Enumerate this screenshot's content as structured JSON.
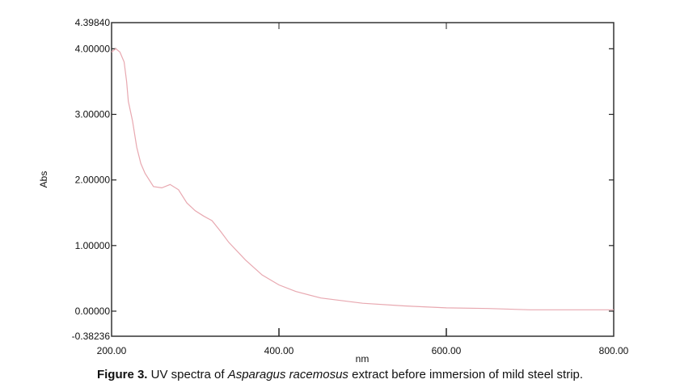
{
  "chart_data": {
    "type": "line",
    "title": "",
    "xlabel": "nm",
    "ylabel": "Abs",
    "xlim": [
      200,
      800
    ],
    "ylim": [
      -0.38236,
      4.3984
    ],
    "x_ticks": [
      "200.00",
      "400.00",
      "600.00",
      "800.00"
    ],
    "y_ticks": [
      "4.39840",
      "4.00000",
      "3.00000",
      "2.00000",
      "1.00000",
      "0.00000",
      "-0.38236"
    ],
    "grid": false,
    "series_color": "#e8a8b0",
    "x": [
      200,
      205,
      210,
      215,
      218,
      220,
      225,
      230,
      235,
      240,
      250,
      260,
      270,
      280,
      290,
      300,
      310,
      320,
      330,
      340,
      360,
      380,
      400,
      420,
      450,
      500,
      550,
      600,
      650,
      700,
      750,
      800
    ],
    "y": [
      3.95,
      4.0,
      3.95,
      3.8,
      3.5,
      3.2,
      2.9,
      2.5,
      2.25,
      2.1,
      1.9,
      1.88,
      1.93,
      1.85,
      1.65,
      1.53,
      1.45,
      1.38,
      1.22,
      1.05,
      0.78,
      0.55,
      0.4,
      0.3,
      0.2,
      0.12,
      0.08,
      0.05,
      0.04,
      0.02,
      0.02,
      0.02
    ]
  },
  "caption": {
    "label": "Figure 3.",
    "text_before": " UV spectra of ",
    "species": "Asparagus racemosus",
    "text_after": " extract before immersion of mild steel strip."
  }
}
